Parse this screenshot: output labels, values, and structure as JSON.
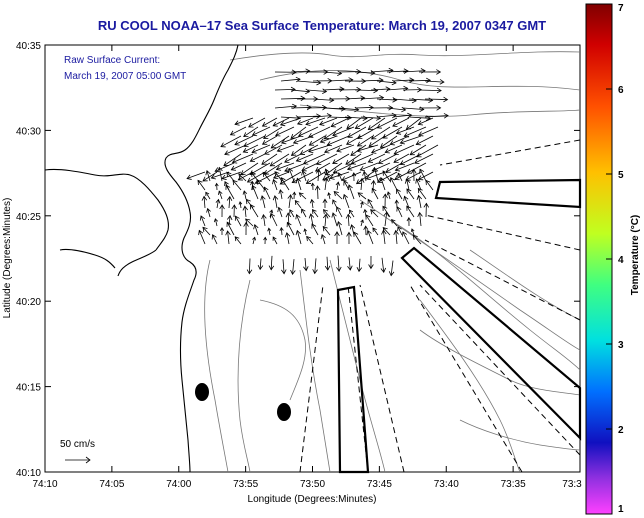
{
  "title": "RU COOL  NOAA–17  Sea Surface Temperature:  March 19, 2007 0347 GMT",
  "current_label": "Raw Surface Current:",
  "current_time": "March 19, 2007 05:00 GMT",
  "scale_label": "50 cm/s",
  "xlabel": "Longitude (Degrees:Minutes)",
  "ylabel": "Latitude (Degrees:Minutes)",
  "colorbar_label": "Temperature (°C)",
  "x_ticks": [
    "74:10",
    "74:05",
    "74:00",
    "73:55",
    "73:50",
    "73:45",
    "73:40",
    "73:35",
    "73:3"
  ],
  "y_ticks": [
    "40:35",
    "40:30",
    "40:25",
    "40:20",
    "40:15",
    "40:10"
  ],
  "cb_ticks": [
    "7",
    "6",
    "5",
    "4",
    "3",
    "2",
    "1"
  ],
  "colors": {
    "title_blue": "#1a1aa0",
    "map_bg": "#ffffff",
    "colorbar_top": "#800000",
    "colorbar_bottom": "#ff40ff"
  }
}
